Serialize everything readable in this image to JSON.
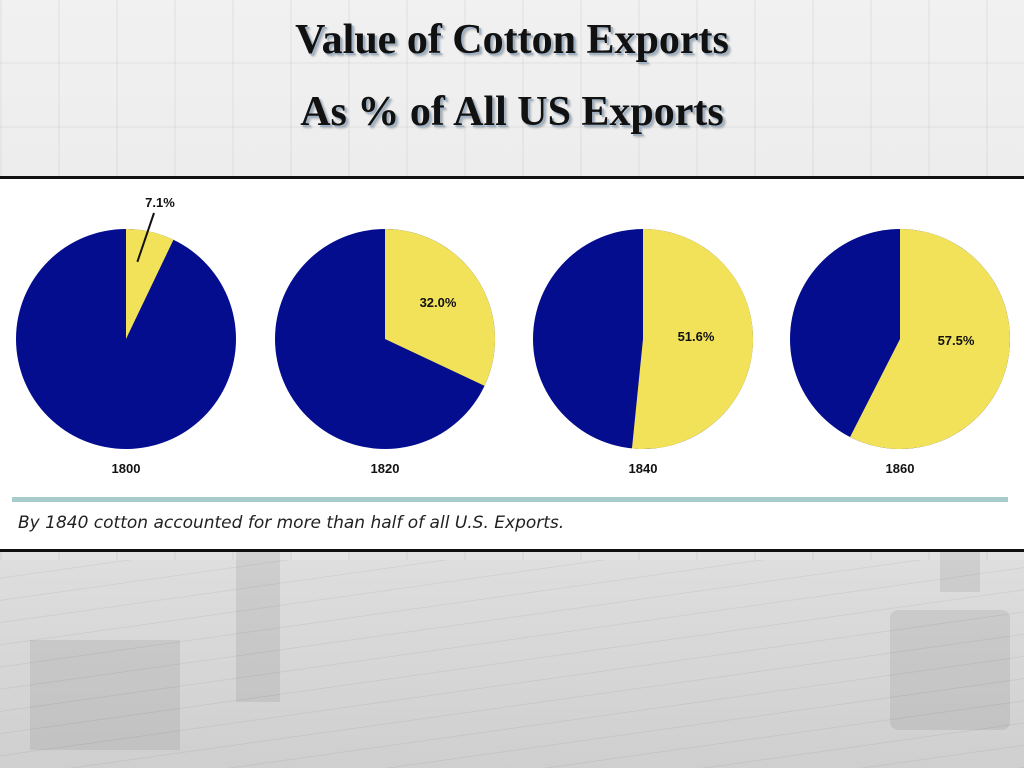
{
  "title_line1": "Value of Cotton Exports",
  "title_line2": "As % of All US Exports",
  "caption": "By 1840 cotton accounted for more than half of all U.S. Exports.",
  "colors": {
    "cotton": "#f2e25a",
    "other": "#050d8f"
  },
  "chart_data": [
    {
      "type": "pie",
      "category": "1800",
      "cotton_percent": 7.1,
      "label": "7.1%"
    },
    {
      "type": "pie",
      "category": "1820",
      "cotton_percent": 32.0,
      "label": "32.0%"
    },
    {
      "type": "pie",
      "category": "1840",
      "cotton_percent": 51.6,
      "label": "51.6%"
    },
    {
      "type": "pie",
      "category": "1860",
      "cotton_percent": 57.5,
      "label": "57.5%"
    }
  ]
}
